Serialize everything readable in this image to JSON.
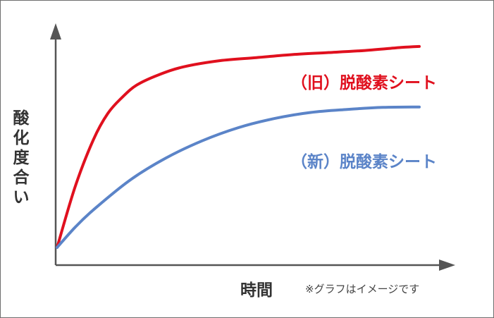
{
  "chart_data": {
    "type": "line",
    "ylabel": "酸化度合い",
    "xlabel": "時間",
    "note": "※グラフはイメージです",
    "series": [
      {
        "name": "（旧）脱酸素シート",
        "color": "#e0101e",
        "x": [
          0,
          0.05,
          0.1,
          0.14,
          0.18,
          0.22,
          0.28,
          0.35,
          0.45,
          0.55,
          0.65,
          0.75,
          0.85,
          0.95,
          1.0
        ],
        "values": [
          0,
          0.3,
          0.53,
          0.66,
          0.74,
          0.8,
          0.85,
          0.89,
          0.92,
          0.935,
          0.95,
          0.96,
          0.97,
          0.985,
          0.99
        ]
      },
      {
        "name": "（新）脱酸素シート",
        "color": "#5b84c8",
        "x": [
          0,
          0.05,
          0.1,
          0.2,
          0.3,
          0.4,
          0.5,
          0.6,
          0.7,
          0.8,
          0.9,
          1.0
        ],
        "values": [
          0,
          0.1,
          0.185,
          0.33,
          0.44,
          0.525,
          0.59,
          0.635,
          0.665,
          0.68,
          0.69,
          0.692
        ]
      }
    ]
  }
}
